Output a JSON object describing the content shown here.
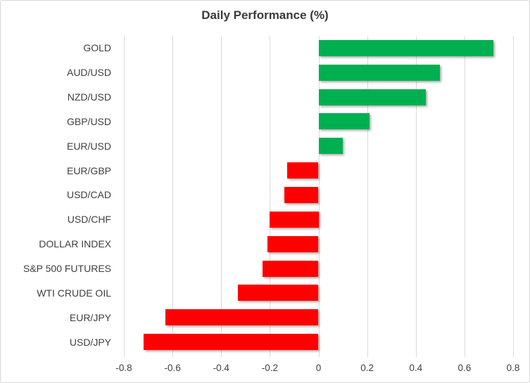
{
  "chart_data": {
    "type": "bar",
    "orientation": "horizontal",
    "title": "Daily Performance (%)",
    "categories": [
      "GOLD",
      "AUD/USD",
      "NZD/USD",
      "GBP/USD",
      "EUR/USD",
      "EUR/GBP",
      "USD/CAD",
      "USD/CHF",
      "DOLLAR INDEX",
      "S&P 500 FUTURES",
      "WTI CRUDE OIL",
      "EUR/JPY",
      "USD/JPY"
    ],
    "values": [
      0.72,
      0.5,
      0.44,
      0.21,
      0.1,
      -0.13,
      -0.14,
      -0.2,
      -0.21,
      -0.23,
      -0.33,
      -0.63,
      -0.72
    ],
    "xlim": [
      -0.8,
      0.8
    ],
    "x_tick_values": [
      -0.8,
      -0.6,
      -0.4,
      -0.2,
      0,
      0.2,
      0.4,
      0.6,
      0.8
    ],
    "x_tick_labels": [
      "-0.8",
      "-0.6",
      "-0.4",
      "-0.2",
      "0",
      "0.2",
      "0.4",
      "0.6",
      "0.8"
    ],
    "grid": "vertical",
    "legend": "none",
    "colors": {
      "positive": "#00B050",
      "negative": "#FF0000",
      "gridline": "#D9D9D9",
      "axis_text": "#404040",
      "title_text": "#3A3A3A",
      "frame_border": "#D7D7D7",
      "background": "#FFFFFF"
    }
  }
}
